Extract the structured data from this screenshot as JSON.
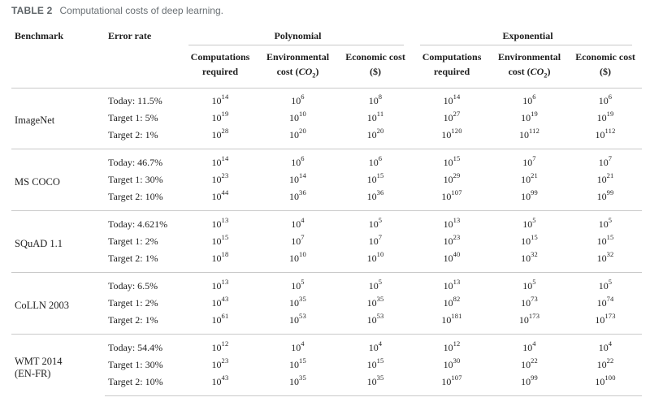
{
  "page": {
    "title_label": "TABLE 2",
    "title_caption": "Computational costs of deep learning."
  },
  "colors": {
    "background": "#ffffff",
    "text": "#1e1e1e",
    "title_label": "#5d6367",
    "title_caption": "#6a7074",
    "rule": "#c9c9c9"
  },
  "table": {
    "base": "10",
    "headers": {
      "benchmark": "Benchmark",
      "error_rate": "Error rate"
    },
    "groups": [
      {
        "label": "Polynomial"
      },
      {
        "label": "Exponential"
      }
    ],
    "subheaders": [
      {
        "line1": "Computations",
        "line2_plain": "required"
      },
      {
        "line1": "Environmental",
        "line2_pre": "cost (",
        "line2_italic": "CO",
        "line2_sub": "2",
        "line2_post": ")"
      },
      {
        "line1": "Economic cost",
        "line2_plain": "($)"
      }
    ],
    "benchmarks": [
      {
        "name": "ImageNet",
        "rows": [
          {
            "error_rate": "Today: 11.5%",
            "exponents": [
              "14",
              "6",
              "8",
              "14",
              "6",
              "6"
            ]
          },
          {
            "error_rate": "Target 1: 5%",
            "exponents": [
              "19",
              "10",
              "11",
              "27",
              "19",
              "19"
            ]
          },
          {
            "error_rate": "Target 2: 1%",
            "exponents": [
              "28",
              "20",
              "20",
              "120",
              "112",
              "112"
            ]
          }
        ]
      },
      {
        "name": "MS COCO",
        "rows": [
          {
            "error_rate": "Today: 46.7%",
            "exponents": [
              "14",
              "6",
              "6",
              "15",
              "7",
              "7"
            ]
          },
          {
            "error_rate": "Target 1: 30%",
            "exponents": [
              "23",
              "14",
              "15",
              "29",
              "21",
              "21"
            ]
          },
          {
            "error_rate": "Target 2: 10%",
            "exponents": [
              "44",
              "36",
              "36",
              "107",
              "99",
              "99"
            ]
          }
        ]
      },
      {
        "name": "SQuAD 1.1",
        "rows": [
          {
            "error_rate": "Today: 4.621%",
            "exponents": [
              "13",
              "4",
              "5",
              "13",
              "5",
              "5"
            ]
          },
          {
            "error_rate": "Target 1: 2%",
            "exponents": [
              "15",
              "7",
              "7",
              "23",
              "15",
              "15"
            ]
          },
          {
            "error_rate": "Target 2: 1%",
            "exponents": [
              "18",
              "10",
              "10",
              "40",
              "32",
              "32"
            ]
          }
        ]
      },
      {
        "name": "CoLLN 2003",
        "rows": [
          {
            "error_rate": "Today: 6.5%",
            "exponents": [
              "13",
              "5",
              "5",
              "13",
              "5",
              "5"
            ]
          },
          {
            "error_rate": "Target 1: 2%",
            "exponents": [
              "43",
              "35",
              "35",
              "82",
              "73",
              "74"
            ]
          },
          {
            "error_rate": "Target 2: 1%",
            "exponents": [
              "61",
              "53",
              "53",
              "181",
              "173",
              "173"
            ]
          }
        ]
      },
      {
        "name": "WMT 2014",
        "name_line2": "(EN-FR)",
        "rows": [
          {
            "error_rate": "Today: 54.4%",
            "exponents": [
              "12",
              "4",
              "4",
              "12",
              "4",
              "4"
            ]
          },
          {
            "error_rate": "Target 1: 30%",
            "exponents": [
              "23",
              "15",
              "15",
              "30",
              "22",
              "22"
            ]
          },
          {
            "error_rate": "Target 2: 10%",
            "exponents": [
              "43",
              "35",
              "35",
              "107",
              "99",
              "100"
            ]
          }
        ]
      }
    ]
  }
}
